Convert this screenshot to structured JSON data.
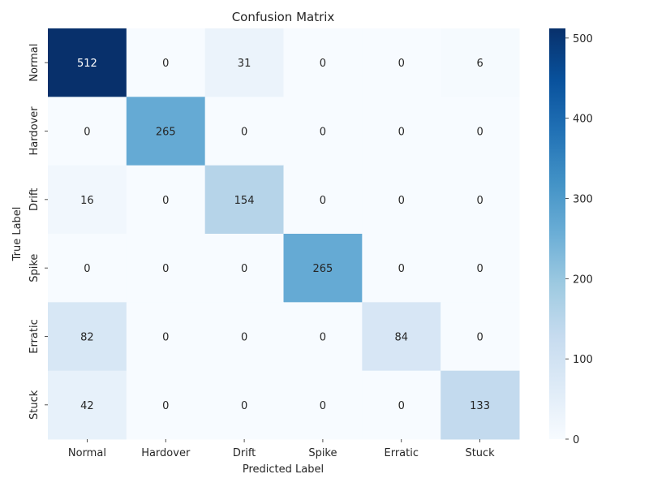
{
  "chart_data": {
    "type": "heatmap",
    "title": "Confusion Matrix",
    "xlabel": "Predicted Label",
    "ylabel": "True Label",
    "x_categories": [
      "Normal",
      "Hardover",
      "Drift",
      "Spike",
      "Erratic",
      "Stuck"
    ],
    "y_categories": [
      "Normal",
      "Hardover",
      "Drift",
      "Spike",
      "Erratic",
      "Stuck"
    ],
    "values": [
      [
        512,
        0,
        31,
        0,
        0,
        6
      ],
      [
        0,
        265,
        0,
        0,
        0,
        0
      ],
      [
        16,
        0,
        154,
        0,
        0,
        0
      ],
      [
        0,
        0,
        0,
        265,
        0,
        0
      ],
      [
        82,
        0,
        0,
        0,
        84,
        0
      ],
      [
        42,
        0,
        0,
        0,
        0,
        133
      ]
    ],
    "colormap": "Blues",
    "vmin": 0,
    "vmax": 512,
    "colorbar_ticks": [
      0,
      100,
      200,
      300,
      400,
      500
    ]
  }
}
